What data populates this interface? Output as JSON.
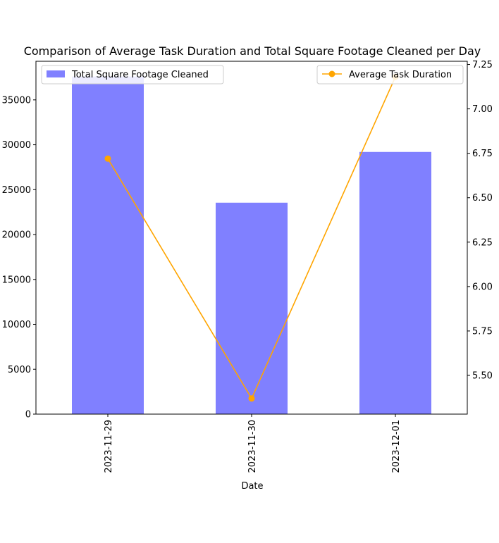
{
  "chart_data": {
    "type": "bar",
    "title": "Comparison of Average Task Duration and Total Square Footage Cleaned per Day",
    "xlabel": "Date",
    "ylabel": "",
    "y2label": "",
    "categories": [
      "2023-11-29",
      "2023-11-30",
      "2023-12-01"
    ],
    "series": [
      {
        "name": "Total Square Footage Cleaned",
        "type": "bar",
        "axis": "left",
        "color": "#8080ff",
        "values": [
          37600,
          23550,
          29200
        ]
      },
      {
        "name": "Average Task Duration",
        "type": "line",
        "axis": "right",
        "color": "#ffa500",
        "marker": "circle",
        "values": [
          6.72,
          5.37,
          7.18
        ]
      }
    ],
    "ylim": [
      0,
      39300
    ],
    "y2lim": [
      5.282,
      7.268
    ],
    "yticks": [
      0,
      5000,
      10000,
      15000,
      20000,
      25000,
      30000,
      35000
    ],
    "y2ticks": [
      5.5,
      5.75,
      6.0,
      6.25,
      6.5,
      6.75,
      7.0,
      7.25
    ],
    "y2tick_labels": [
      "5.50",
      "5.75",
      "6.00",
      "6.25",
      "6.50",
      "6.75",
      "7.00",
      "7.25"
    ],
    "grid": false,
    "legend_left": "top-left",
    "legend_right": "top-right"
  }
}
